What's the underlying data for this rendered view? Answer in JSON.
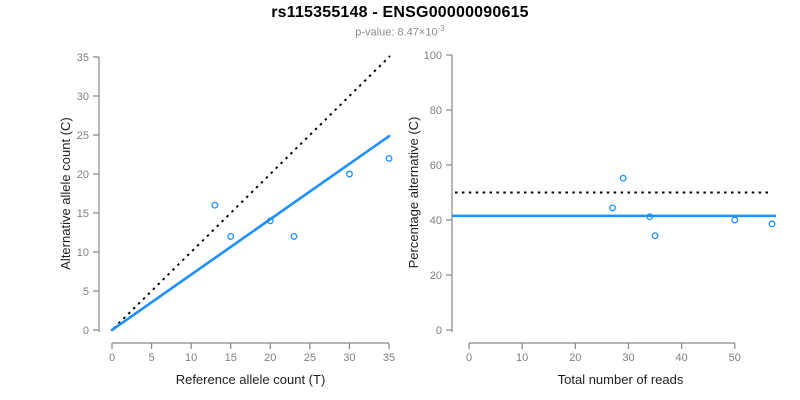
{
  "header": {
    "title": "rs115355148 - ENSG00000090615",
    "p_label": "p-value: ",
    "p_mantissa": "8.47",
    "p_times": "×10",
    "p_exponent": "-3"
  },
  "colors": {
    "accent_blue": "#1E90FF",
    "reference_line": "#000000",
    "tick_label": "#7f7f7f",
    "axis_line": "#878787",
    "axis_title": "#1f1f1f",
    "subtitle": "#8c8c8c",
    "background": "#ffffff"
  },
  "chart_data": [
    {
      "type": "scatter",
      "panel": "allele-counts",
      "xlabel": "Reference allele count (T)",
      "ylabel": "Alternative allele count (C)",
      "xlim": [
        0,
        35
      ],
      "ylim": [
        0,
        35
      ],
      "xticks": [
        0,
        5,
        10,
        15,
        20,
        25,
        30,
        35
      ],
      "yticks": [
        0,
        5,
        10,
        15,
        20,
        25,
        30,
        35
      ],
      "grid": false,
      "legend": "none",
      "points": [
        [
          13,
          16
        ],
        [
          15,
          12
        ],
        [
          20,
          14
        ],
        [
          23,
          12
        ],
        [
          30,
          20
        ],
        [
          35,
          22
        ]
      ],
      "ablines": [
        {
          "name": "identity-line",
          "slope": 1,
          "intercept": 0,
          "style": "dotted",
          "color": "#000000"
        },
        {
          "name": "fit-line",
          "slope": 0.71,
          "intercept": 0,
          "style": "solid",
          "color": "#1E90FF"
        }
      ]
    },
    {
      "type": "scatter",
      "panel": "percentage-alternative",
      "xlabel": "Total number of reads",
      "ylabel": "Percentage alternative (C)",
      "xlim": [
        0,
        57
      ],
      "ylim": [
        0,
        100
      ],
      "xticks": [
        0,
        10,
        20,
        30,
        40,
        50
      ],
      "yticks": [
        0,
        20,
        40,
        60,
        80,
        100
      ],
      "grid": false,
      "legend": "none",
      "points": [
        [
          29,
          55.2
        ],
        [
          27,
          44.4
        ],
        [
          34,
          41.2
        ],
        [
          35,
          34.3
        ],
        [
          50,
          40.0
        ],
        [
          57,
          38.6
        ]
      ],
      "hlines": [
        {
          "name": "expected-50pct-line",
          "y": 50,
          "style": "dotted",
          "color": "#000000"
        },
        {
          "name": "mean-alt-pct-line",
          "y": 41.5,
          "style": "solid",
          "color": "#1E90FF"
        }
      ]
    }
  ]
}
